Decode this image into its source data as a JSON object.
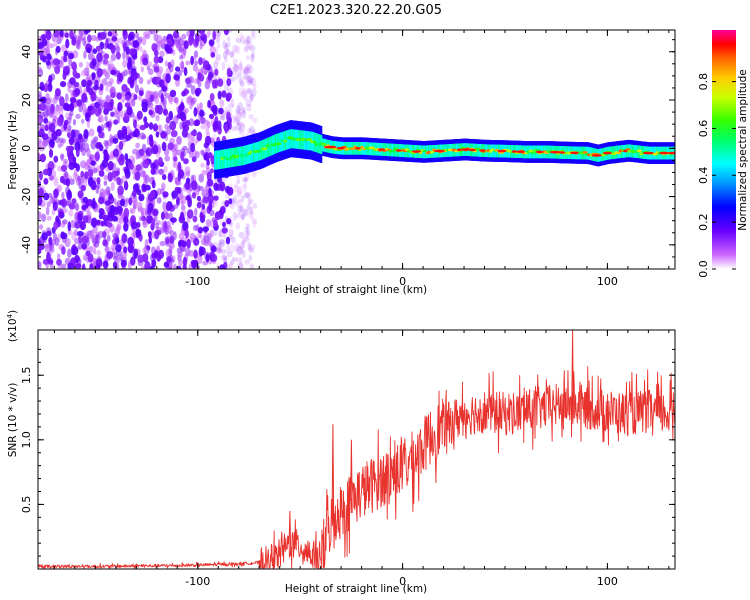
{
  "title": "C2E1.2023.320.22.20.G05",
  "chart_data": [
    {
      "type": "heatmap",
      "name": "spectrogram",
      "xlabel": "Height of straight line (km)",
      "ylabel": "Frequency (Hz)",
      "xlim": [
        -178,
        133
      ],
      "ylim": [
        -50,
        49
      ],
      "xticks": [
        -100,
        0,
        100
      ],
      "xtick_labels": [
        "-100",
        "0",
        "100"
      ],
      "yticks": [
        -40,
        -20,
        0,
        20,
        40
      ],
      "ytick_labels": [
        "-40",
        "-20",
        "0",
        "20",
        "40"
      ],
      "noise_region_km": [
        -178,
        -78
      ],
      "signal_start_km": -92,
      "signal_track": {
        "x": [
          -92,
          -85,
          -78,
          -70,
          -62,
          -55,
          -50,
          -45,
          -40,
          -35,
          -30,
          -20,
          -10,
          0,
          10,
          20,
          30,
          40,
          50,
          60,
          70,
          80,
          90,
          95,
          100,
          110,
          120,
          133
        ],
        "y": [
          -5,
          -4,
          -3,
          -1,
          2,
          4,
          3.5,
          3,
          1.5,
          0.5,
          0,
          0,
          -0.5,
          -1,
          -1.5,
          -1,
          -0.5,
          -1,
          -1.2,
          -1.5,
          -1.5,
          -1.8,
          -2,
          -3,
          -2,
          -1,
          -2,
          -2
        ]
      },
      "colorbar": {
        "label": "Normalized spectral amplitude",
        "range": [
          0,
          1
        ],
        "ticks": [
          0.0,
          0.2,
          0.4,
          0.6,
          0.8
        ],
        "tick_labels": [
          "0.0",
          "0.2",
          "0.4",
          "0.6",
          "0.8"
        ]
      }
    },
    {
      "type": "line",
      "name": "snr",
      "color": "#e8322d",
      "xlabel": "Height of straight line (km)",
      "ylabel": "SNR (10 * v/v)",
      "y_multiplier": "(x10",
      "y_multiplier_exp": "4",
      "y_multiplier_close": ")",
      "xlim": [
        -178,
        133
      ],
      "ylim": [
        0,
        1.85
      ],
      "xticks": [
        -100,
        0,
        100
      ],
      "xtick_labels": [
        "-100",
        "0",
        "100"
      ],
      "yticks": [
        0.5,
        1.0,
        1.5
      ],
      "ytick_labels": [
        "0.5",
        "1.0",
        "1.5"
      ],
      "series": [
        {
          "name": "SNR",
          "x": [
            -178,
            -150,
            -120,
            -100,
            -80,
            -70,
            -62,
            -58,
            -55,
            -50,
            -45,
            -42,
            -40,
            -38,
            -36,
            -33,
            -30,
            -27,
            -24,
            -20,
            -15,
            -10,
            -5,
            0,
            5,
            10,
            15,
            20,
            25,
            30,
            40,
            50,
            60,
            70,
            80,
            90,
            100,
            110,
            120,
            133
          ],
          "y": [
            0.02,
            0.02,
            0.025,
            0.03,
            0.04,
            0.05,
            0.08,
            0.15,
            0.2,
            0.18,
            0.12,
            0.08,
            0.1,
            0.2,
            0.32,
            0.42,
            0.45,
            0.5,
            0.55,
            0.6,
            0.65,
            0.7,
            0.75,
            0.78,
            0.85,
            0.95,
            1.05,
            1.1,
            1.15,
            1.2,
            1.22,
            1.2,
            1.22,
            1.25,
            1.28,
            1.25,
            1.22,
            1.2,
            1.22,
            1.2
          ]
        }
      ],
      "spikes": [
        {
          "x": 83,
          "y": 1.85
        },
        {
          "x": -34,
          "y": 1.12
        },
        {
          "x": -25,
          "y": 1.0
        },
        {
          "x": -55,
          "y": 0.45
        }
      ]
    }
  ]
}
